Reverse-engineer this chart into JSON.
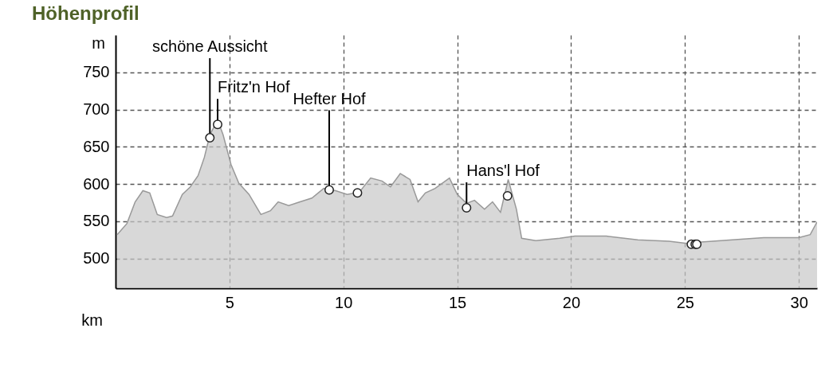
{
  "chart_data": {
    "type": "area",
    "title": "Höhenprofil",
    "xlabel": "km",
    "ylabel": "m",
    "xlim": [
      0,
      30.8
    ],
    "ylim": [
      460,
      800
    ],
    "xticks": [
      5,
      10,
      15,
      20,
      25,
      30
    ],
    "yticks": [
      500,
      550,
      600,
      650,
      700,
      750
    ],
    "grid": true,
    "series": [
      {
        "color": "#c8c8c8",
        "x": [
          0.07,
          0.5,
          0.86,
          1.2,
          1.5,
          1.83,
          2.24,
          2.5,
          2.93,
          3.28,
          3.62,
          3.9,
          4.14,
          4.48,
          4.72,
          5.07,
          5.41,
          5.86,
          6.38,
          6.8,
          7.14,
          7.6,
          8.1,
          8.62,
          9.14,
          9.66,
          10.17,
          10.7,
          11.2,
          11.7,
          12.07,
          12.5,
          12.93,
          13.28,
          13.6,
          14.03,
          14.66,
          15,
          15.41,
          15.76,
          16.2,
          16.55,
          16.9,
          17.24,
          17.6,
          17.83,
          18.45,
          19.5,
          20.17,
          21.55,
          22.93,
          24.3,
          25.17,
          25.7,
          27.07,
          28.45,
          30,
          30.5,
          30.8
        ],
        "values": [
          532,
          547,
          576,
          591,
          588,
          559,
          555,
          557,
          586,
          596,
          611,
          636,
          666,
          686,
          666,
          626,
          601,
          586,
          559,
          564,
          576,
          571,
          576,
          581,
          594,
          591,
          586,
          589,
          608,
          604,
          596,
          614,
          606,
          576,
          588,
          594,
          608,
          586,
          574,
          578,
          566,
          576,
          562,
          606,
          566,
          527,
          524,
          527,
          530,
          530,
          525,
          523,
          520,
          522,
          525,
          528,
          528,
          532,
          549
        ]
      },
      {
        "type": "scatter",
        "color": "#ffffff",
        "x": [
          4.14,
          4.48,
          9.38,
          10.62,
          15.41,
          17.21,
          25.28,
          25.45,
          25.52
        ],
        "values": [
          662,
          680,
          592,
          588,
          568,
          584,
          519,
          519,
          519
        ]
      }
    ],
    "annotations": [
      {
        "text": "schöne Aussicht",
        "x": 4.14,
        "y": 662
      },
      {
        "text": "Fritz'n Hof",
        "x": 4.48,
        "y": 680
      },
      {
        "text": "Hefter Hof",
        "x": 9.38,
        "y": 592
      },
      {
        "text": "Hans'l Hof",
        "x": 15.41,
        "y": 568
      }
    ]
  }
}
